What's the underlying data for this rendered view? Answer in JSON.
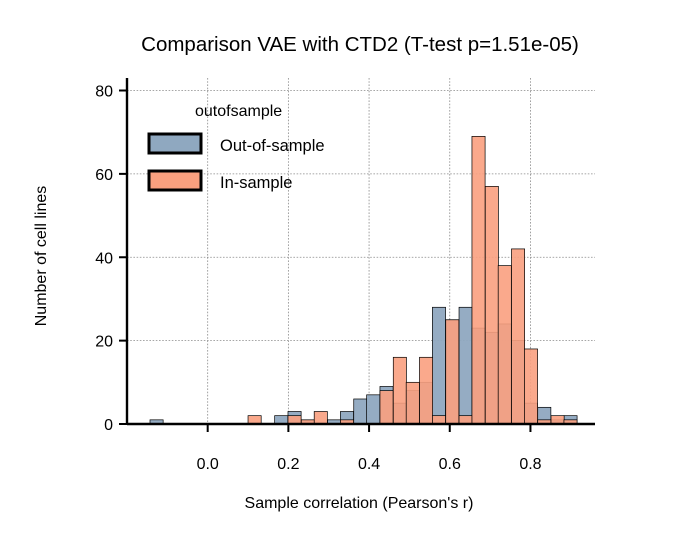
{
  "chart_data": {
    "type": "bar",
    "title": "Comparison VAE with CTD2 (T-test p=1.51e-05)",
    "xlabel": "Sample correlation (Pearson's r)",
    "ylabel": "Number of cell lines",
    "xlim": [
      -0.2,
      0.96
    ],
    "ylim": [
      0,
      83
    ],
    "xticks": [
      0.0,
      0.2,
      0.4,
      0.6,
      0.8
    ],
    "xtick_labels": [
      "0.0",
      "0.2",
      "0.4",
      "0.6",
      "0.8"
    ],
    "yticks": [
      0,
      20,
      40,
      60,
      80
    ],
    "ytick_labels": [
      "0",
      "20",
      "40",
      "60",
      "80"
    ],
    "grid": true,
    "legend": {
      "title": "outofsample",
      "placement": "top-left",
      "entries": [
        "Out-of-sample",
        "In-sample"
      ]
    },
    "bin_width": 0.0326,
    "bin_starts": [
      -0.143,
      0.1,
      0.166,
      0.199,
      0.232,
      0.264,
      0.297,
      0.329,
      0.362,
      0.394,
      0.427,
      0.46,
      0.492,
      0.525,
      0.557,
      0.59,
      0.623,
      0.655,
      0.688,
      0.72,
      0.753,
      0.785,
      0.818,
      0.851,
      0.883
    ],
    "series": [
      {
        "name": "Out-of-sample",
        "color": "#8fa8c0",
        "values": [
          1,
          0,
          2,
          3,
          1,
          0,
          1,
          3,
          6,
          7,
          9,
          5,
          8,
          10,
          28,
          25,
          28,
          23,
          22,
          24,
          20,
          5,
          4,
          1,
          2
        ]
      },
      {
        "name": "In-sample",
        "color": "#f9a07f",
        "values": [
          0,
          2,
          0,
          2,
          1,
          3,
          0,
          1,
          0,
          0,
          8,
          16,
          10,
          16,
          2,
          25,
          2,
          69,
          57,
          38,
          42,
          18,
          1,
          2,
          1
        ]
      }
    ]
  }
}
